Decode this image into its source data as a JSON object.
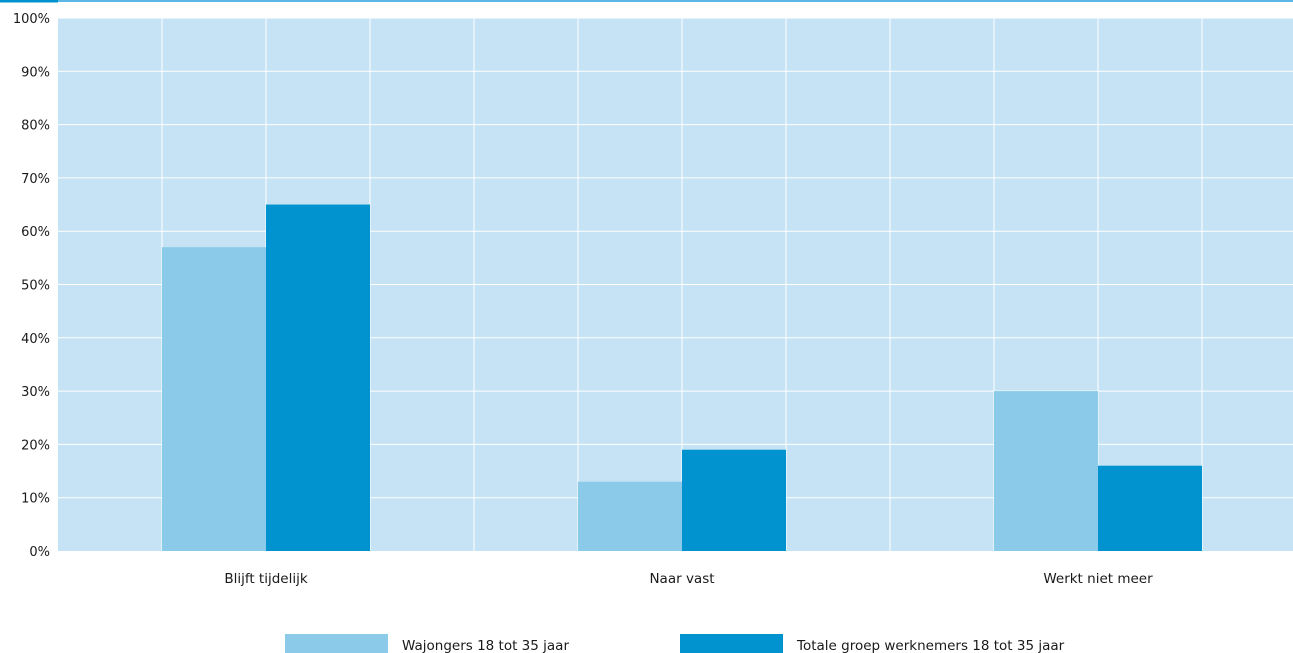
{
  "chart_data": {
    "type": "bar",
    "categories": [
      "Blijft tijdelijk",
      "Naar vast",
      "Werkt niet meer"
    ],
    "series": [
      {
        "name": "Wajongers 18 tot 35 jaar",
        "values": [
          57,
          13,
          30
        ],
        "color": "#8ccae9"
      },
      {
        "name": "Totale groep werknemers 18 tot 35 jaar",
        "values": [
          65,
          19,
          16
        ],
        "color": "#0093d0"
      }
    ],
    "ylim": [
      0,
      100
    ],
    "yticks": [
      "0%",
      "10%",
      "20%",
      "30%",
      "40%",
      "50%",
      "60%",
      "70%",
      "80%",
      "90%",
      "100%"
    ],
    "grid": true,
    "legend_position": "bottom-center",
    "colors": {
      "plot_background": "#c5e3f4",
      "gridline": "#ffffff",
      "top_rule": "#5bb8e6"
    }
  }
}
